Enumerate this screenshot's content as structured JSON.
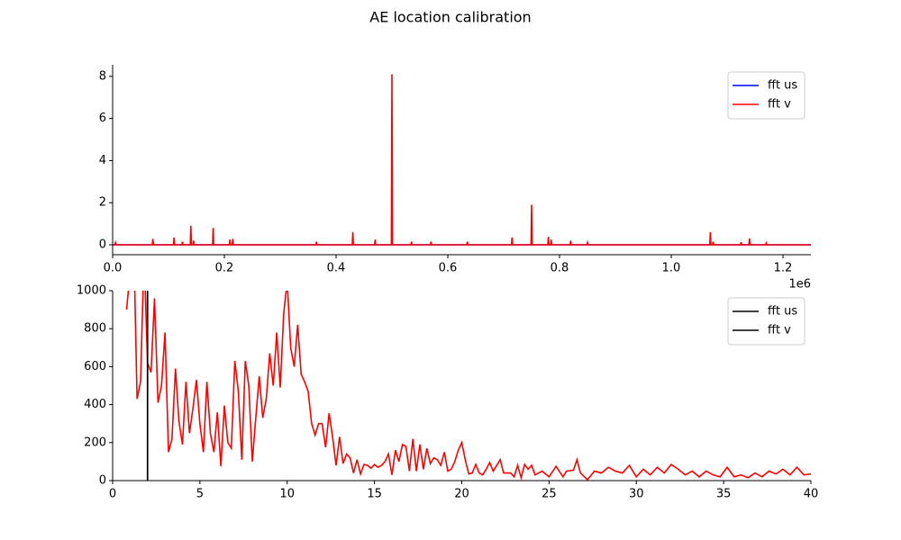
{
  "title": "AE location calibration",
  "chart_data": [
    {
      "type": "line",
      "x_offset_label": "1e6",
      "xlim": [
        0,
        1.25
      ],
      "ylim": [
        -0.47,
        8.55
      ],
      "xticks": [
        {
          "value": 0,
          "label": "0.0"
        },
        0.2,
        0.4,
        0.6,
        0.8,
        {
          "value": 1,
          "label": "1.0"
        },
        1.2
      ],
      "yticks": [
        0,
        2,
        4,
        6,
        8
      ],
      "legend": "upper right",
      "series": [
        {
          "name": "fft us",
          "color": "#0000ff",
          "x": [
            0,
            1.25
          ],
          "values": [
            0,
            0
          ]
        },
        {
          "name": "fft v",
          "color": "#ff0000",
          "x": [
            0,
            0.004,
            0.005,
            0.006,
            0.071,
            0.072,
            0.073,
            0.109,
            0.11,
            0.111,
            0.124,
            0.125,
            0.126,
            0.139,
            0.14,
            0.141,
            0.144,
            0.145,
            0.146,
            0.179,
            0.18,
            0.181,
            0.209,
            0.21,
            0.211,
            0.214,
            0.215,
            0.216,
            0.364,
            0.365,
            0.366,
            0.429,
            0.43,
            0.431,
            0.469,
            0.47,
            0.471,
            0.499,
            0.5,
            0.501,
            0.534,
            0.535,
            0.536,
            0.569,
            0.57,
            0.571,
            0.634,
            0.635,
            0.636,
            0.714,
            0.715,
            0.716,
            0.749,
            0.75,
            0.751,
            0.779,
            0.78,
            0.781,
            0.784,
            0.785,
            0.786,
            0.819,
            0.82,
            0.821,
            0.849,
            0.85,
            0.851,
            1.069,
            1.07,
            1.071,
            1.074,
            1.075,
            1.076,
            1.124,
            1.125,
            1.126,
            1.139,
            1.14,
            1.141,
            1.169,
            1.17,
            1.171,
            1.25
          ],
          "values": [
            0,
            0,
            0.1,
            0,
            0,
            0.28,
            0,
            0,
            0.35,
            0,
            0,
            0.15,
            0,
            0,
            0.9,
            0,
            0,
            0.2,
            0,
            0,
            0.8,
            0,
            0,
            0.25,
            0,
            0,
            0.28,
            0,
            0,
            0.15,
            0,
            0,
            0.6,
            0,
            0,
            0.25,
            0,
            0,
            8.1,
            0,
            0,
            0.15,
            0,
            0,
            0.15,
            0,
            0,
            0.15,
            0,
            0,
            0.35,
            0,
            0,
            1.9,
            0,
            0,
            0.38,
            0,
            0,
            0.25,
            0,
            0,
            0.2,
            0,
            0,
            0.1,
            0,
            0,
            0.6,
            0,
            0,
            0.15,
            0,
            0,
            0.12,
            0,
            0,
            0.3,
            0,
            0,
            0.08,
            0,
            0
          ]
        }
      ]
    },
    {
      "type": "line",
      "xlim": [
        0,
        40
      ],
      "ylim": [
        0,
        1000
      ],
      "xticks": [
        0,
        5,
        10,
        15,
        20,
        25,
        30,
        35,
        40
      ],
      "yticks": [
        0,
        200,
        400,
        600,
        800,
        1000
      ],
      "legend": "upper right",
      "series": [
        {
          "color": "#ff0000",
          "x": [
            0.8,
            1.0,
            1.2,
            1.4,
            1.6,
            1.8,
            2.0,
            2.2,
            2.4,
            2.6,
            2.8,
            3.0,
            3.2,
            3.4,
            3.6,
            3.8,
            4.0,
            4.2,
            4.4,
            4.6,
            4.8,
            5.0,
            5.2,
            5.4,
            5.6,
            5.8,
            6.0,
            6.2,
            6.4,
            6.6,
            6.8,
            7.0,
            7.2,
            7.4,
            7.6,
            7.8,
            8.0,
            8.2,
            8.4,
            8.6,
            8.8,
            9.0,
            9.2,
            9.4,
            9.6,
            9.8,
            10.0,
            10.2,
            10.4,
            10.6,
            10.8,
            11.0,
            11.2,
            11.4,
            11.6,
            11.8,
            12.0,
            12.2,
            12.4,
            12.6,
            12.8,
            13.0,
            13.2,
            13.4,
            13.6,
            13.8,
            14.0,
            14.2,
            14.4,
            14.6,
            14.8,
            15.0,
            15.2,
            15.4,
            15.6,
            15.8,
            16.0,
            16.2,
            16.4,
            16.6,
            16.8,
            17.0,
            17.2,
            17.4,
            17.6,
            17.8,
            18.0,
            18.2,
            18.4,
            18.6,
            18.8,
            19.0,
            19.2,
            19.4,
            19.6,
            19.8,
            20.0,
            20.2,
            20.4,
            20.6,
            20.8,
            21.0,
            21.2,
            21.4,
            21.6,
            21.8,
            22.2,
            22.4,
            22.8,
            23.0,
            23.2,
            23.4,
            23.6,
            23.8,
            24.0,
            24.2,
            24.6,
            25.0,
            25.4,
            25.8,
            26.0,
            26.4,
            26.6,
            26.8,
            27.2,
            27.6,
            28.0,
            28.4,
            28.8,
            29.2,
            29.6,
            30.0,
            30.4,
            30.8,
            31.2,
            31.6,
            32.0,
            32.4,
            32.8,
            33.2,
            33.6,
            34.0,
            34.4,
            34.8,
            35.2,
            35.6,
            36.0,
            36.4,
            36.8,
            37.2,
            37.6,
            38.0,
            38.4,
            38.8,
            39.2,
            39.6,
            40.0
          ],
          "values": [
            900,
            1100,
            1300,
            430,
            520,
            1200,
            620,
            570,
            960,
            410,
            500,
            780,
            150,
            220,
            590,
            310,
            190,
            520,
            250,
            380,
            530,
            300,
            150,
            520,
            250,
            150,
            360,
            75,
            395,
            200,
            170,
            630,
            470,
            110,
            630,
            500,
            100,
            330,
            550,
            330,
            430,
            670,
            500,
            780,
            490,
            880,
            1050,
            700,
            600,
            820,
            560,
            520,
            470,
            300,
            240,
            300,
            300,
            175,
            355,
            230,
            80,
            230,
            90,
            140,
            120,
            40,
            110,
            35,
            85,
            80,
            65,
            85,
            70,
            80,
            100,
            140,
            30,
            160,
            100,
            190,
            180,
            50,
            220,
            50,
            190,
            60,
            170,
            90,
            120,
            110,
            80,
            150,
            50,
            60,
            100,
            160,
            200,
            110,
            35,
            40,
            85,
            40,
            30,
            60,
            95,
            50,
            110,
            40,
            40,
            20,
            80,
            15,
            85,
            60,
            80,
            30,
            50,
            20,
            75,
            20,
            50,
            55,
            110,
            40,
            5,
            50,
            40,
            70,
            50,
            40,
            80,
            20,
            60,
            30,
            70,
            40,
            85,
            60,
            30,
            50,
            20,
            50,
            30,
            20,
            70,
            20,
            30,
            15,
            40,
            20,
            50,
            35,
            60,
            30,
            70,
            30,
            35
          ]
        },
        {
          "name": "fft us",
          "color": "#000000",
          "x": [
            2,
            2
          ],
          "values": [
            0,
            1100
          ]
        },
        {
          "name": "fft v",
          "color": "#000000",
          "x": [
            2,
            2
          ],
          "values": [
            0,
            1100
          ]
        }
      ]
    }
  ]
}
